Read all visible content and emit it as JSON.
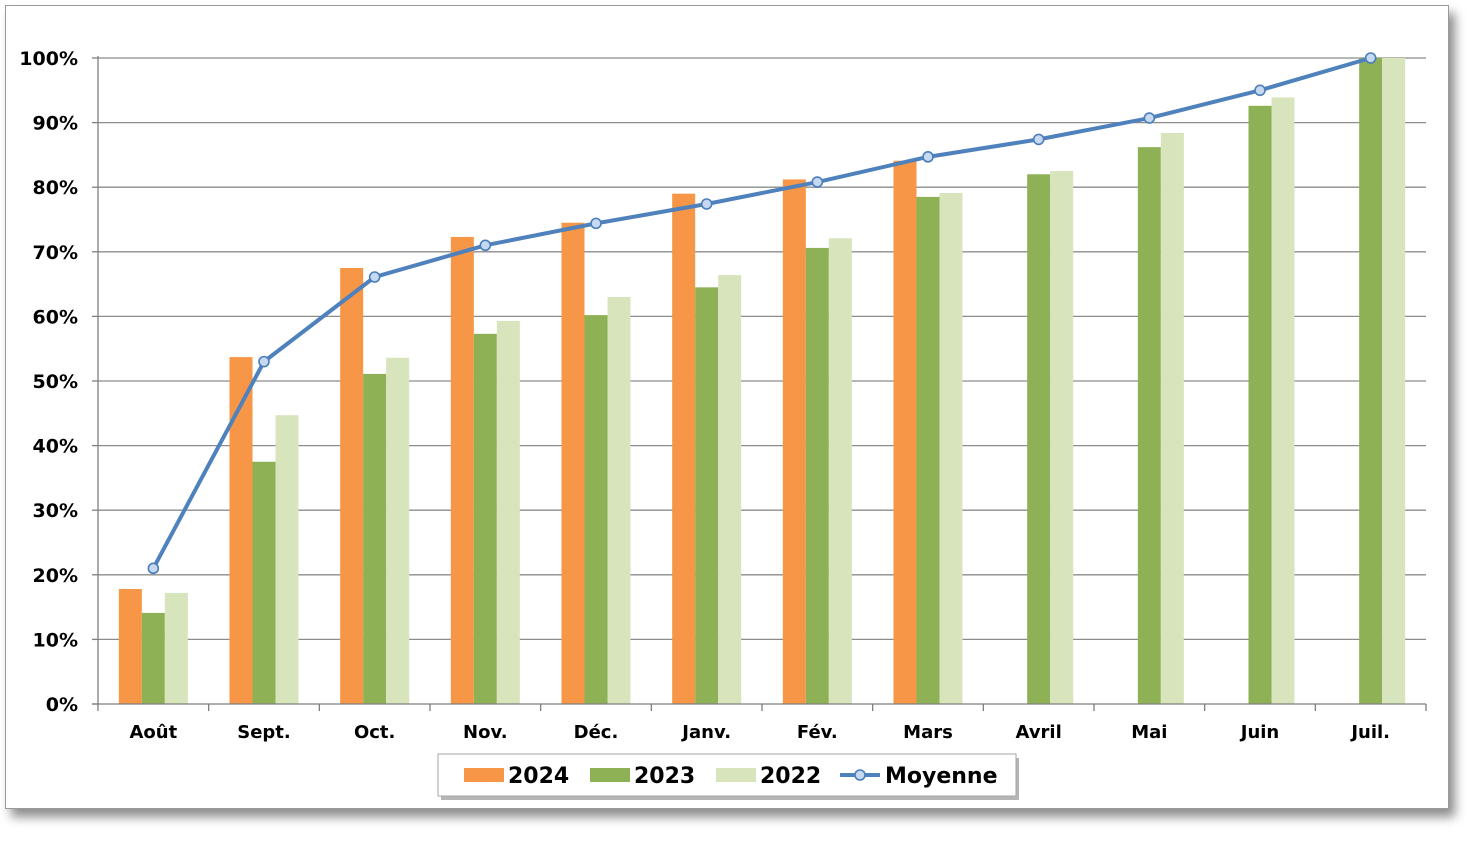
{
  "chart_data": {
    "type": "bar",
    "categories": [
      "Août",
      "Sept.",
      "Oct.",
      "Nov.",
      "Déc.",
      "Janv.",
      "Fév.",
      "Mars",
      "Avril",
      "Mai",
      "Juin",
      "Juil."
    ],
    "y_ticks": [
      "0%",
      "10%",
      "20%",
      "30%",
      "40%",
      "50%",
      "60%",
      "70%",
      "80%",
      "90%",
      "100%"
    ],
    "ylim": [
      0,
      100
    ],
    "grid": true,
    "legend_position": "bottom",
    "series": [
      {
        "name": "2024",
        "type": "bar",
        "color": "#F79646",
        "values": [
          17.8,
          53.7,
          67.5,
          72.3,
          74.5,
          79.0,
          81.2,
          84.1,
          null,
          null,
          null,
          null
        ]
      },
      {
        "name": "2023",
        "type": "bar",
        "color": "#8EB156",
        "values": [
          14.1,
          37.5,
          51.1,
          57.3,
          60.2,
          64.5,
          70.6,
          78.5,
          82.0,
          86.2,
          92.6,
          100
        ]
      },
      {
        "name": "2022",
        "type": "bar",
        "color": "#D8E4BC",
        "values": [
          17.2,
          44.7,
          53.6,
          59.3,
          63.0,
          66.4,
          72.1,
          79.1,
          82.5,
          88.4,
          93.9,
          100
        ]
      },
      {
        "name": "Moyenne",
        "type": "line",
        "color": "#4F81BD",
        "values": [
          21.0,
          53.0,
          66.1,
          71.0,
          74.4,
          77.4,
          80.8,
          84.7,
          87.4,
          90.7,
          95.0,
          100
        ]
      }
    ]
  }
}
